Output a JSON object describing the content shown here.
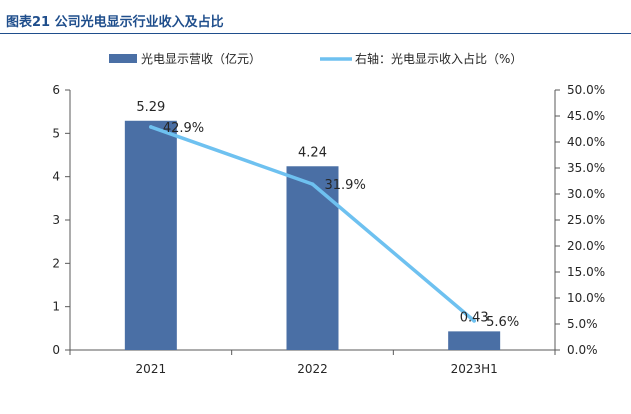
{
  "figure_title": "图表21 公司光电显示行业收入及占比",
  "chart_data": {
    "type": "bar",
    "categories": [
      "2021",
      "2022",
      "2023H1"
    ],
    "series": [
      {
        "name": "光电显示营收（亿元）",
        "type": "bar",
        "axis": "left",
        "values": [
          5.29,
          4.24,
          0.43
        ],
        "labels": [
          "5.29",
          "4.24",
          "0.43"
        ],
        "color": "#4a6fa5"
      },
      {
        "name": "右轴：光电显示收入占比（%）",
        "type": "line",
        "axis": "right",
        "values": [
          42.9,
          31.9,
          5.6
        ],
        "labels": [
          "42.9%",
          "31.9%",
          "5.6%"
        ],
        "color": "#6ec1f0"
      }
    ],
    "y_left": {
      "min": 0,
      "max": 6,
      "ticks": [
        0,
        1,
        2,
        3,
        4,
        5,
        6
      ],
      "tick_labels": [
        "0",
        "1",
        "2",
        "3",
        "4",
        "5",
        "6"
      ]
    },
    "y_right": {
      "min": 0,
      "max": 50,
      "ticks": [
        0,
        5,
        10,
        15,
        20,
        25,
        30,
        35,
        40,
        45,
        50
      ],
      "tick_labels": [
        "0.0%",
        "5.0%",
        "10.0%",
        "15.0%",
        "20.0%",
        "25.0%",
        "30.0%",
        "35.0%",
        "40.0%",
        "45.0%",
        "50.0%"
      ]
    },
    "grid": false,
    "legend_position": "top"
  }
}
